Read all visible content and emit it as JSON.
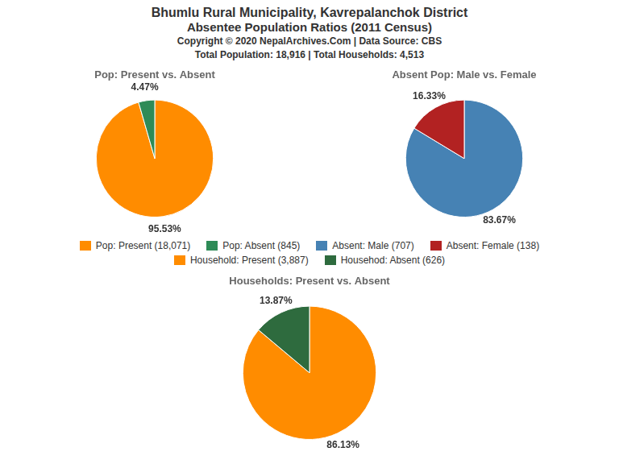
{
  "title": "Bhumlu Rural Municipality, Kavrepalanchok District",
  "subtitle": "Absentee Population Ratios (2011 Census)",
  "annotations": [
    "Copyright © 2020 NepalArchives.Com | Data Source: CBS",
    "Total Population: 18,916 | Total Households: 4,513"
  ],
  "chart_data": [
    {
      "type": "pie",
      "title": "Pop: Present vs. Absent",
      "categories": [
        "Pop: Present (18,071)",
        "Pop: Absent (845)"
      ],
      "values": [
        95.53,
        4.47
      ],
      "value_labels": [
        "95.53%",
        "4.47%"
      ],
      "colors": [
        "#FF8C00",
        "#2E8B57"
      ],
      "data_labels": true
    },
    {
      "type": "pie",
      "title": "Absent Pop: Male vs. Female",
      "categories": [
        "Absent: Male (707)",
        "Absent: Female (138)"
      ],
      "values": [
        83.67,
        16.33
      ],
      "value_labels": [
        "83.67%",
        "16.33%"
      ],
      "colors": [
        "#4682B4",
        "#B22222"
      ],
      "data_labels": true
    },
    {
      "type": "pie",
      "title": "Households: Present vs. Absent",
      "categories": [
        "Household: Present (3,887)",
        "Househod: Absent (626)"
      ],
      "values": [
        86.13,
        13.87
      ],
      "value_labels": [
        "86.13%",
        "13.87%"
      ],
      "colors": [
        "#FF8C00",
        "#2E6B3E"
      ],
      "data_labels": true
    }
  ]
}
